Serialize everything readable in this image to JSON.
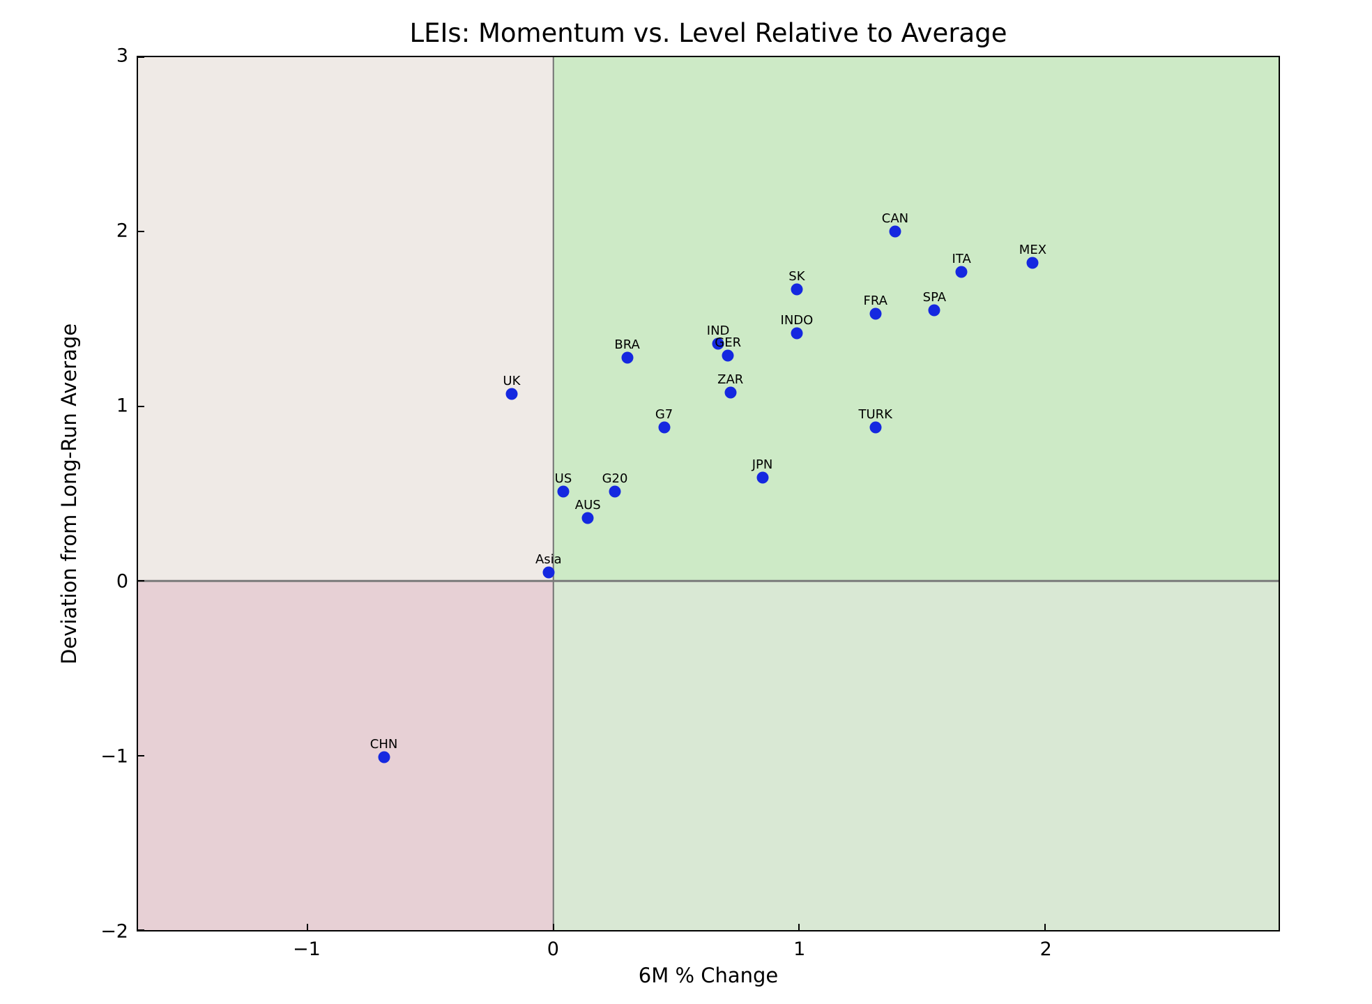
{
  "chart_data": {
    "type": "scatter",
    "title": "LEIs: Momentum vs. Level Relative to Average",
    "xlabel": "6M % Change",
    "ylabel": "Deviation from Long-Run Average",
    "xlim": [
      -1.69,
      2.95
    ],
    "ylim": [
      -2,
      3
    ],
    "grid": false,
    "legend": "none",
    "marker_color": "#1528e0",
    "quadrant_colors": {
      "top_left": "#efeae6",
      "top_right": "#cdeac6",
      "bottom_left": "#e7d0d5",
      "bottom_right": "#d9e8d4"
    },
    "zero_line_color": "#737373",
    "x_ticks": [
      {
        "value": -1,
        "label": "−1"
      },
      {
        "value": 0,
        "label": "0"
      },
      {
        "value": 1,
        "label": "1"
      },
      {
        "value": 2,
        "label": "2"
      }
    ],
    "y_ticks": [
      {
        "value": -2,
        "label": "−2"
      },
      {
        "value": -1,
        "label": "−1"
      },
      {
        "value": 0,
        "label": "0"
      },
      {
        "value": 1,
        "label": "1"
      },
      {
        "value": 2,
        "label": "2"
      },
      {
        "value": 3,
        "label": "3"
      }
    ],
    "points": [
      {
        "label": "US",
        "x": 0.04,
        "y": 0.51
      },
      {
        "label": "G20",
        "x": 0.25,
        "y": 0.51
      },
      {
        "label": "AUS",
        "x": 0.14,
        "y": 0.36
      },
      {
        "label": "Asia",
        "x": -0.02,
        "y": 0.05
      },
      {
        "label": "UK",
        "x": -0.17,
        "y": 1.07
      },
      {
        "label": "G7",
        "x": 0.45,
        "y": 0.88
      },
      {
        "label": "JPN",
        "x": 0.85,
        "y": 0.59
      },
      {
        "label": "BRA",
        "x": 0.3,
        "y": 1.28
      },
      {
        "label": "IND",
        "x": 0.67,
        "y": 1.36
      },
      {
        "label": "GER",
        "x": 0.71,
        "y": 1.29
      },
      {
        "label": "ZAR",
        "x": 0.72,
        "y": 1.08
      },
      {
        "label": "INDO",
        "x": 0.99,
        "y": 1.42
      },
      {
        "label": "SK",
        "x": 0.99,
        "y": 1.67
      },
      {
        "label": "FRA",
        "x": 1.31,
        "y": 1.53
      },
      {
        "label": "SPA",
        "x": 1.55,
        "y": 1.55
      },
      {
        "label": "ITA",
        "x": 1.66,
        "y": 1.77
      },
      {
        "label": "MEX",
        "x": 1.95,
        "y": 1.82
      },
      {
        "label": "CAN",
        "x": 1.39,
        "y": 2.0
      },
      {
        "label": "TURK",
        "x": 1.31,
        "y": 0.88
      },
      {
        "label": "CHN",
        "x": -0.69,
        "y": -1.01
      }
    ]
  }
}
